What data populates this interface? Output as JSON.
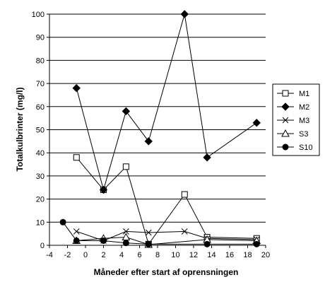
{
  "chart_data": {
    "type": "line",
    "title": "",
    "xlabel": "Måneder efter start af oprensningen",
    "ylabel": "Totalkulbrinter (mg/l)",
    "xlim": [
      -4,
      20
    ],
    "ylim": [
      0,
      100
    ],
    "xticks": [
      -4,
      -2,
      0,
      2,
      4,
      6,
      8,
      10,
      12,
      14,
      16,
      18,
      20
    ],
    "yticks": [
      0,
      10,
      20,
      30,
      40,
      50,
      60,
      70,
      80,
      90,
      100
    ],
    "grid": "horizontal",
    "legend_position": "right",
    "series": [
      {
        "name": "M1",
        "marker": "square-open",
        "points": [
          [
            -1,
            38
          ],
          [
            2,
            24
          ],
          [
            4.5,
            34
          ],
          [
            7,
            0.5
          ],
          [
            11,
            22
          ],
          [
            13.5,
            3.5
          ],
          [
            19,
            3
          ]
        ]
      },
      {
        "name": "M2",
        "marker": "diamond-filled",
        "points": [
          [
            -1,
            68
          ],
          [
            2,
            24
          ],
          [
            4.5,
            58
          ],
          [
            7,
            45
          ],
          [
            11,
            100
          ],
          [
            13.5,
            38
          ],
          [
            19,
            53
          ]
        ]
      },
      {
        "name": "M3",
        "marker": "x",
        "points": [
          [
            -1,
            6
          ],
          [
            2,
            2
          ],
          [
            4.5,
            6
          ],
          [
            7,
            5.5
          ],
          [
            11,
            6
          ],
          [
            13.5,
            3
          ],
          [
            19,
            2.5
          ]
        ]
      },
      {
        "name": "S3",
        "marker": "triangle-open",
        "points": [
          [
            -1,
            2
          ],
          [
            2,
            3
          ],
          [
            4.5,
            3.5
          ],
          [
            7,
            0.3
          ],
          [
            13.5,
            2.5
          ],
          [
            19,
            2
          ]
        ]
      },
      {
        "name": "S10",
        "marker": "circle-filled",
        "points": [
          [
            -2.5,
            10
          ],
          [
            -1,
            2
          ],
          [
            2,
            2
          ],
          [
            4.5,
            1
          ],
          [
            7,
            0.5
          ],
          [
            13.5,
            0.5
          ],
          [
            19,
            0.5
          ]
        ]
      }
    ]
  }
}
